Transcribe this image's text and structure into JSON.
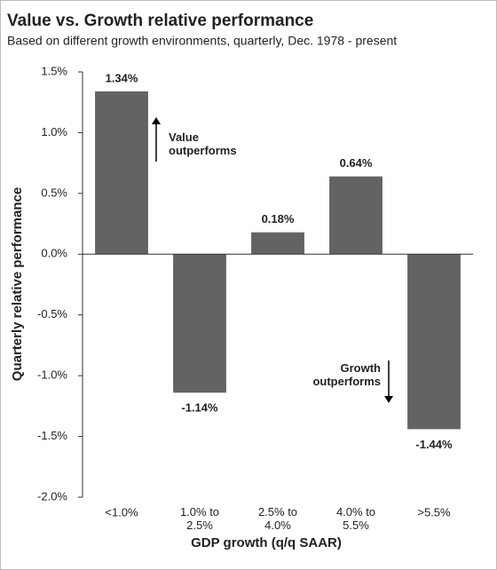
{
  "chart_data": {
    "type": "bar",
    "title": "Value vs. Growth relative performance",
    "subtitle": "Based on different growth environments, quarterly, Dec. 1978 - present",
    "x_label": "GDP growth (q/q SAAR)",
    "y_label": "Quarterly relative performance",
    "categories": [
      "<1.0%",
      "1.0% to\n2.5%",
      "2.5% to\n4.0%",
      "4.0% to\n5.5%",
      ">5.5%"
    ],
    "values": [
      1.34,
      -1.14,
      0.18,
      0.64,
      -1.44
    ],
    "value_labels": [
      "1.34%",
      "-1.14%",
      "0.18%",
      "0.64%",
      "-1.44%"
    ],
    "color": "#636363",
    "ylim": [
      -2.0,
      1.5
    ],
    "yticks": [
      {
        "value": -2.0,
        "label": "-2.0%"
      },
      {
        "value": -1.5,
        "label": "-1.5%"
      },
      {
        "value": -1.0,
        "label": "-1.0%"
      },
      {
        "value": -0.5,
        "label": "-0.5%"
      },
      {
        "value": 0,
        "label": "0.0%"
      },
      {
        "value": 0.5,
        "label": "0.5%"
      },
      {
        "value": 1.0,
        "label": "1.0%"
      },
      {
        "value": 1.5,
        "label": "1.5%"
      }
    ],
    "grid": false,
    "annotations": [
      "Value\noutperforms",
      "Growth\noutperforms"
    ]
  }
}
